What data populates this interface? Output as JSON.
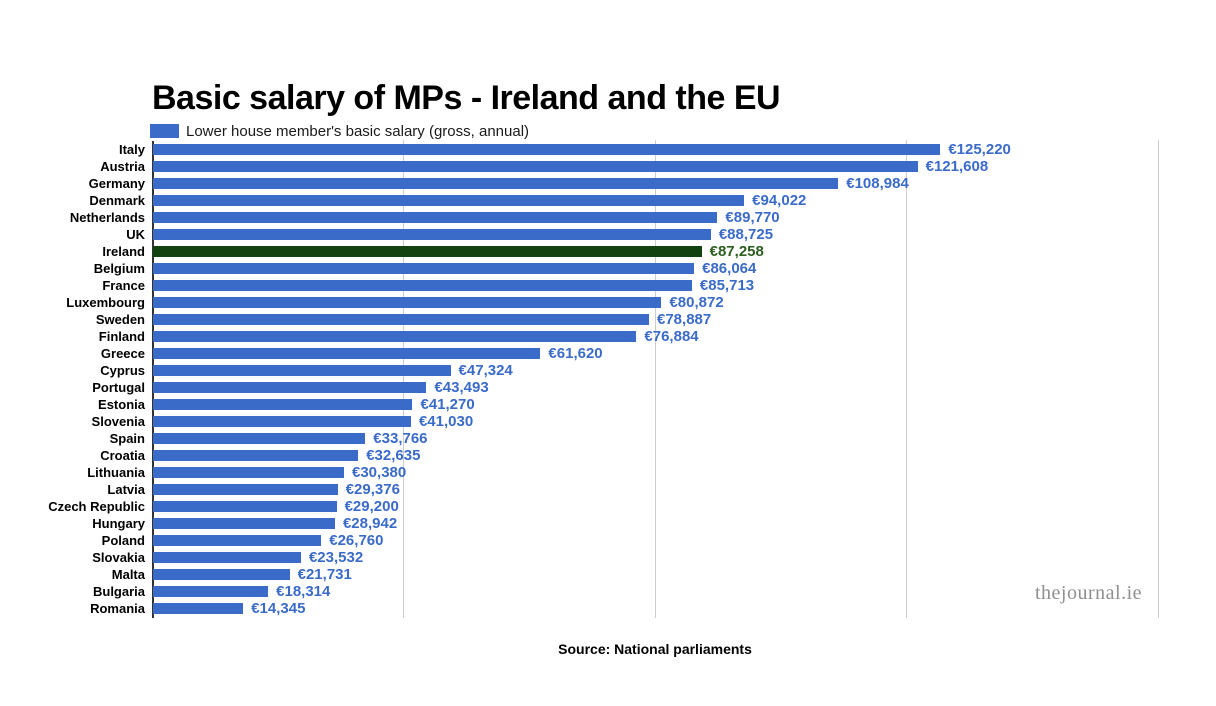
{
  "title": "Basic salary of MPs - Ireland and the EU",
  "legend": {
    "label": "Lower house member's basic salary (gross, annual)"
  },
  "source": "Source: National parliaments",
  "watermark": "thejournal.ie",
  "colors": {
    "bar": "#3a6bc9",
    "highlight_bar": "#134211",
    "value_label": "#3a6bc9",
    "highlight_value_label": "#2b5e1f",
    "gridline": "#cccccc",
    "axis": "#333333",
    "title_text": "#000000",
    "country_label": "#000000",
    "watermark_text": "#8f8f8f"
  },
  "chart_data": {
    "type": "bar",
    "orientation": "horizontal",
    "title": "Basic salary of MPs - Ireland and the EU",
    "legend": [
      "Lower house member's basic salary (gross, annual)"
    ],
    "legend_position": "top-left",
    "xlabel": "",
    "ylabel": "",
    "xlim": [
      0,
      160000
    ],
    "gridlines_x": [
      40000,
      80000,
      120000,
      160000
    ],
    "grid": true,
    "categories": [
      "Italy",
      "Austria",
      "Germany",
      "Denmark",
      "Netherlands",
      "UK",
      "Ireland",
      "Belgium",
      "France",
      "Luxembourg",
      "Sweden",
      "Finland",
      "Greece",
      "Cyprus",
      "Portugal",
      "Estonia",
      "Slovenia",
      "Spain",
      "Croatia",
      "Lithuania",
      "Latvia",
      "Czech Republic",
      "Hungary",
      "Poland",
      "Slovakia",
      "Malta",
      "Bulgaria",
      "Romania"
    ],
    "values": [
      125220,
      121608,
      108984,
      94022,
      89770,
      88725,
      87258,
      86064,
      85713,
      80872,
      78887,
      76884,
      61620,
      47324,
      43493,
      41270,
      41030,
      33766,
      32635,
      30380,
      29376,
      29200,
      28942,
      26760,
      23532,
      21731,
      18314,
      14345
    ],
    "value_labels": [
      "€125,220",
      "€121,608",
      "€108,984",
      "€94,022",
      "€89,770",
      "€88,725",
      "€87,258",
      "€86,064",
      "€85,713",
      "€80,872",
      "€78,887",
      "€76,884",
      "€61,620",
      "€47,324",
      "€43,493",
      "€41,270",
      "€41,030",
      "€33,766",
      "€32,635",
      "€30,380",
      "€29,376",
      "€29,200",
      "€28,942",
      "€26,760",
      "€23,532",
      "€21,731",
      "€18,314",
      "€14,345"
    ],
    "highlight_category": "Ireland",
    "highlight_index": 6
  }
}
